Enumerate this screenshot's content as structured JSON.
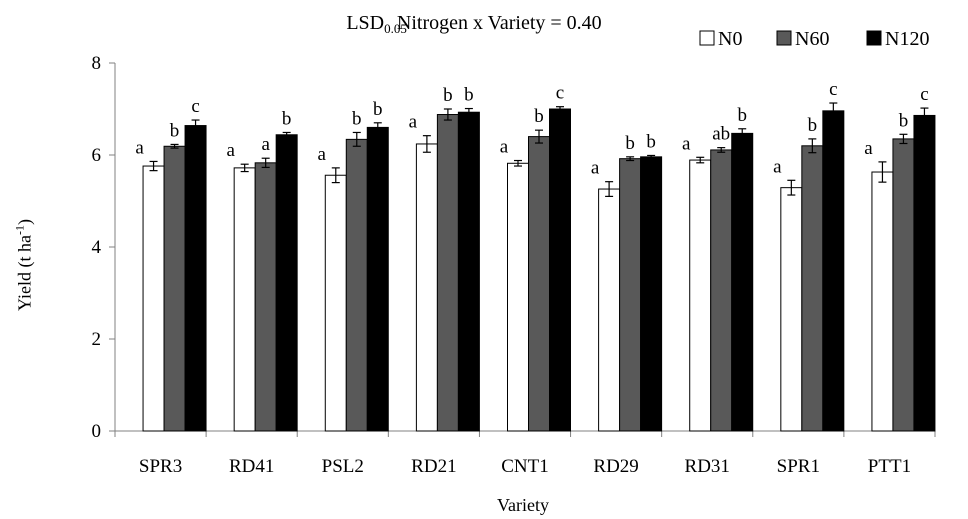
{
  "chart_data": {
    "type": "bar",
    "title": {
      "prefix": "LSD",
      "sub": "0.05",
      "suffix": " Nitrogen x Variety = 0.40"
    },
    "xlabel": "Variety",
    "ylabel": {
      "main": "Yield (t ha",
      "sup": "-1",
      "end": ")"
    },
    "ylim": [
      0,
      8
    ],
    "yticks": [
      "0",
      "2",
      "4",
      "6",
      "8"
    ],
    "legend_position": "top-right",
    "categories": [
      "SPR3",
      "RD41",
      "PSL2",
      "RD21",
      "CNT1",
      "RD29",
      "RD31",
      "SPR1",
      "PTT1"
    ],
    "series": [
      {
        "name": "N0",
        "color": "#ffffff",
        "values": [
          5.76,
          5.72,
          5.56,
          6.24,
          5.82,
          5.26,
          5.89,
          5.29,
          5.63
        ],
        "errors": [
          0.1,
          0.08,
          0.16,
          0.18,
          0.06,
          0.16,
          0.06,
          0.16,
          0.22
        ],
        "letters": [
          "a",
          "a",
          "a",
          "a",
          "a",
          "a",
          "a",
          "a",
          "a"
        ]
      },
      {
        "name": "N60",
        "color": "#595959",
        "values": [
          6.19,
          5.83,
          6.34,
          6.88,
          6.4,
          5.92,
          6.11,
          6.2,
          6.35
        ],
        "errors": [
          0.04,
          0.1,
          0.15,
          0.12,
          0.14,
          0.04,
          0.05,
          0.15,
          0.1
        ],
        "letters": [
          "b",
          "a",
          "b",
          "b",
          "b",
          "b",
          "ab",
          "b",
          "b"
        ]
      },
      {
        "name": "N120",
        "color": "#000000",
        "values": [
          6.64,
          6.44,
          6.6,
          6.93,
          7.0,
          5.96,
          6.47,
          6.96,
          6.86
        ],
        "errors": [
          0.12,
          0.05,
          0.1,
          0.08,
          0.05,
          0.03,
          0.1,
          0.17,
          0.16
        ],
        "letters": [
          "c",
          "b",
          "b",
          "b",
          "c",
          "b",
          "b",
          "c",
          "c"
        ]
      }
    ]
  }
}
